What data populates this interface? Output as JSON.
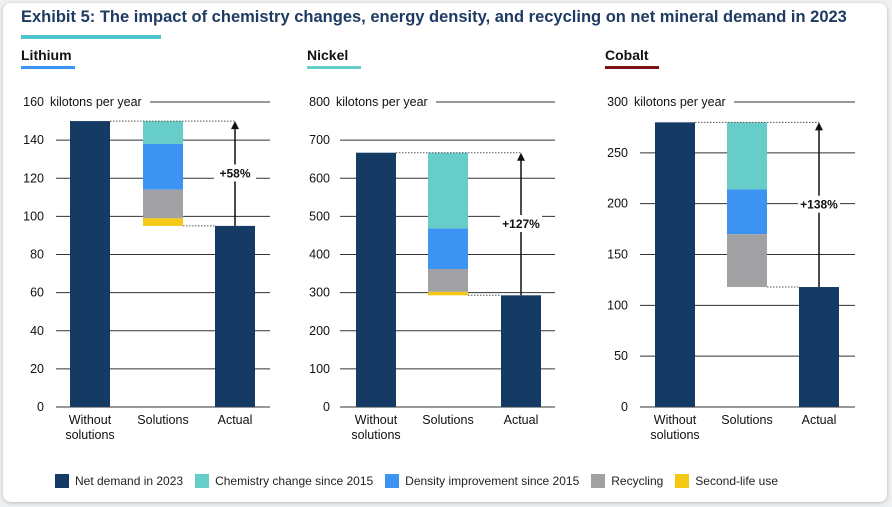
{
  "title": "Exhibit 5: The impact of chemistry changes, energy density, and recycling on net mineral demand in 2023",
  "colors": {
    "net": "#153a63",
    "chemistry": "#66cdc9",
    "density": "#3d93f2",
    "recycling": "#a1a1a4",
    "second_life": "#f5c814",
    "lithium_accent": "#3d93f2",
    "nickel_accent": "#66cdc9",
    "cobalt_accent": "#7a1414"
  },
  "legend": [
    {
      "label": "Net demand in 2023",
      "color": "#153a63"
    },
    {
      "label": "Chemistry change since 2015",
      "color": "#66cdc9"
    },
    {
      "label": "Density improvement since 2015",
      "color": "#3d93f2"
    },
    {
      "label": "Recycling",
      "color": "#a1a1a4"
    },
    {
      "label": "Second-life use",
      "color": "#f5c814"
    }
  ],
  "chart_data": [
    {
      "type": "bar",
      "title": "Lithium",
      "accent": "#3d93f2",
      "ylabel": "kilotons per year",
      "ylim": [
        0,
        160
      ],
      "yticks": [
        0,
        20,
        40,
        60,
        80,
        100,
        120,
        140,
        160
      ],
      "categories": [
        "Without solutions",
        "Solutions",
        "Actual"
      ],
      "without_solutions": 150,
      "actual": 95,
      "solutions_segments": [
        {
          "name": "Chemistry change since 2015",
          "from": 138,
          "to": 150
        },
        {
          "name": "Density improvement since 2015",
          "from": 114,
          "to": 138
        },
        {
          "name": "Recycling",
          "from": 99,
          "to": 114
        },
        {
          "name": "Second-life use",
          "from": 95,
          "to": 99
        }
      ],
      "change_label": "+58%"
    },
    {
      "type": "bar",
      "title": "Nickel",
      "accent": "#66cdc9",
      "ylabel": "kilotons per year",
      "ylim": [
        0,
        800
      ],
      "yticks": [
        0,
        100,
        200,
        300,
        400,
        500,
        600,
        700,
        800
      ],
      "categories": [
        "Without solutions",
        "Solutions",
        "Actual"
      ],
      "without_solutions": 667,
      "actual": 293,
      "solutions_segments": [
        {
          "name": "Chemistry change since 2015",
          "from": 468,
          "to": 667
        },
        {
          "name": "Density improvement since 2015",
          "from": 362,
          "to": 468
        },
        {
          "name": "Recycling",
          "from": 302,
          "to": 362
        },
        {
          "name": "Second-life use",
          "from": 293,
          "to": 302
        }
      ],
      "change_label": "+127%"
    },
    {
      "type": "bar",
      "title": "Cobalt",
      "accent": "#7a1414",
      "ylabel": "kilotons per year",
      "ylim": [
        0,
        300
      ],
      "yticks": [
        0,
        50,
        100,
        150,
        200,
        250,
        300
      ],
      "categories": [
        "Without solutions",
        "Solutions",
        "Actual"
      ],
      "without_solutions": 280,
      "actual": 118,
      "solutions_segments": [
        {
          "name": "Chemistry change since 2015",
          "from": 214,
          "to": 280
        },
        {
          "name": "Density improvement since 2015",
          "from": 170,
          "to": 214
        },
        {
          "name": "Recycling",
          "from": 118,
          "to": 170
        }
      ],
      "change_label": "+138%"
    }
  ]
}
